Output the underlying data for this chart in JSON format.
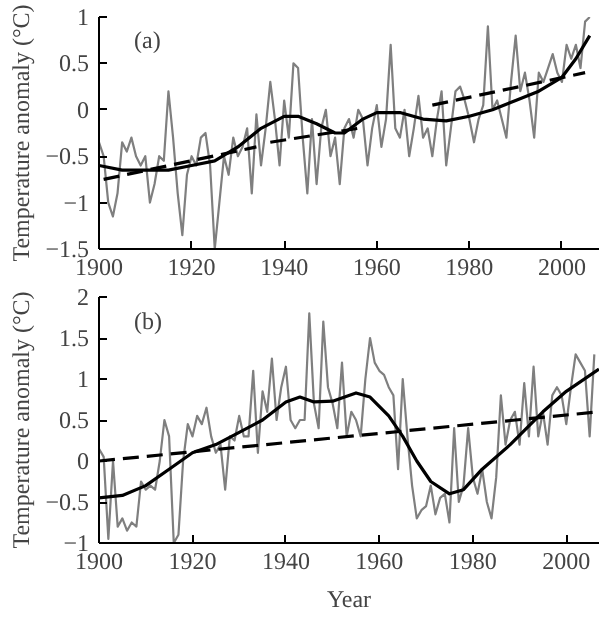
{
  "chart_data": [
    {
      "type": "line",
      "ylabel": "Temperature anomaly (°C)",
      "annotations": [
        "(a)"
      ],
      "xlim": [
        1900,
        2008
      ],
      "ylim": [
        -1.5,
        1
      ],
      "xticks": [
        1900,
        1920,
        1940,
        1960,
        1980,
        2000
      ],
      "yticks": [
        -1.5,
        -1,
        -0.5,
        0,
        0.5,
        1
      ],
      "grid": false,
      "series": [
        {
          "color": "#7f7f7f",
          "line_style": "solid",
          "x": [
            1900,
            1901,
            1902,
            1903,
            1904,
            1905,
            1906,
            1907,
            1908,
            1909,
            1910,
            1911,
            1912,
            1913,
            1914,
            1915,
            1916,
            1917,
            1918,
            1919,
            1920,
            1921,
            1922,
            1923,
            1924,
            1925,
            1926,
            1927,
            1928,
            1929,
            1930,
            1931,
            1932,
            1933,
            1934,
            1935,
            1936,
            1937,
            1938,
            1939,
            1940,
            1941,
            1942,
            1943,
            1944,
            1945,
            1946,
            1947,
            1948,
            1949,
            1950,
            1951,
            1952,
            1953,
            1954,
            1955,
            1956,
            1957,
            1958,
            1959,
            1960,
            1961,
            1962,
            1963,
            1964,
            1965,
            1966,
            1967,
            1968,
            1969,
            1970,
            1971,
            1972,
            1973,
            1974,
            1975,
            1976,
            1977,
            1978,
            1979,
            1980,
            1981,
            1982,
            1983,
            1984,
            1985,
            1986,
            1987,
            1988,
            1989,
            1990,
            1991,
            1992,
            1993,
            1994,
            1995,
            1996,
            1997,
            1998,
            1999,
            2000,
            2001,
            2002,
            2003,
            2004,
            2005,
            2006
          ],
          "values": [
            -0.35,
            -0.5,
            -1.0,
            -1.15,
            -0.9,
            -0.35,
            -0.45,
            -0.3,
            -0.5,
            -0.6,
            -0.5,
            -1.0,
            -0.8,
            -0.5,
            -0.55,
            0.2,
            -0.3,
            -0.9,
            -1.35,
            -0.7,
            -0.5,
            -0.6,
            -0.3,
            -0.25,
            -0.6,
            -1.5,
            -1.0,
            -0.5,
            -0.7,
            -0.3,
            -0.5,
            -0.4,
            -0.2,
            -0.9,
            -0.05,
            -0.6,
            -0.2,
            0.3,
            -0.1,
            -0.6,
            0.1,
            -0.3,
            0.5,
            0.45,
            -0.3,
            -0.9,
            -0.1,
            -0.8,
            -0.2,
            0.0,
            -0.5,
            -0.3,
            -0.8,
            -0.2,
            -0.1,
            -0.3,
            0.0,
            -0.1,
            -0.6,
            -0.2,
            0.05,
            -0.4,
            -0.1,
            0.7,
            -0.2,
            -0.3,
            0.0,
            -0.5,
            -0.2,
            0.15,
            -0.3,
            -0.2,
            -0.5,
            -0.1,
            0.2,
            -0.6,
            -0.2,
            0.2,
            0.25,
            0.1,
            -0.1,
            -0.35,
            -0.1,
            0.05,
            0.9,
            0.0,
            0.1,
            -0.1,
            -0.3,
            0.3,
            0.8,
            0.2,
            0.4,
            0.1,
            -0.3,
            0.4,
            0.3,
            0.45,
            0.6,
            0.4,
            0.3,
            0.7,
            0.55,
            0.7,
            0.45,
            0.95,
            1.0
          ]
        },
        {
          "color": "#000000",
          "line_style": "solid",
          "x": [
            1900,
            1905,
            1910,
            1915,
            1920,
            1925,
            1930,
            1935,
            1940,
            1943,
            1947,
            1951,
            1953,
            1957,
            1960,
            1965,
            1970,
            1975,
            1980,
            1985,
            1990,
            1995,
            2000,
            2003,
            2006
          ],
          "values": [
            -0.6,
            -0.65,
            -0.65,
            -0.65,
            -0.6,
            -0.55,
            -0.4,
            -0.2,
            -0.07,
            -0.07,
            -0.15,
            -0.25,
            -0.25,
            -0.1,
            -0.03,
            -0.03,
            -0.1,
            -0.12,
            -0.07,
            0.0,
            0.1,
            0.2,
            0.35,
            0.55,
            0.8
          ]
        },
        {
          "color": "#000000",
          "line_style": "dashed",
          "x": [
            1901,
            1934,
            1935,
            1937,
            1956,
            1960,
            1972,
            2005
          ],
          "values": [
            -0.75,
            -0.4,
            null,
            -0.35,
            -0.2,
            null,
            0.05,
            0.4
          ]
        }
      ]
    },
    {
      "type": "line",
      "xlabel": "Year",
      "ylabel": "Temperature anomaly (°C)",
      "annotations": [
        "(b)"
      ],
      "xlim": [
        1900,
        2007
      ],
      "ylim": [
        -1,
        2
      ],
      "xticks": [
        1900,
        1920,
        1940,
        1960,
        1980,
        2000
      ],
      "yticks": [
        -1,
        -0.5,
        0,
        0.5,
        1,
        1.5,
        2
      ],
      "grid": false,
      "series": [
        {
          "color": "#7f7f7f",
          "line_style": "solid",
          "x": [
            1900,
            1901,
            1902,
            1903,
            1904,
            1905,
            1906,
            1907,
            1908,
            1909,
            1910,
            1911,
            1912,
            1913,
            1914,
            1915,
            1916,
            1917,
            1918,
            1919,
            1920,
            1921,
            1922,
            1923,
            1924,
            1925,
            1926,
            1927,
            1928,
            1929,
            1930,
            1931,
            1932,
            1933,
            1934,
            1935,
            1936,
            1937,
            1938,
            1939,
            1940,
            1941,
            1942,
            1943,
            1944,
            1945,
            1946,
            1947,
            1948,
            1949,
            1950,
            1951,
            1952,
            1953,
            1954,
            1955,
            1956,
            1957,
            1958,
            1959,
            1960,
            1961,
            1962,
            1963,
            1964,
            1965,
            1966,
            1967,
            1968,
            1969,
            1970,
            1971,
            1972,
            1973,
            1974,
            1975,
            1976,
            1977,
            1978,
            1979,
            1980,
            1981,
            1982,
            1983,
            1984,
            1985,
            1986,
            1987,
            1988,
            1989,
            1990,
            1991,
            1992,
            1993,
            1994,
            1995,
            1996,
            1997,
            1998,
            1999,
            2000,
            2001,
            2002,
            2003,
            2004,
            2005,
            2006
          ],
          "values": [
            0.15,
            0.05,
            -0.95,
            0.0,
            -0.8,
            -0.7,
            -0.85,
            -0.75,
            -0.8,
            -0.25,
            -0.35,
            -0.3,
            -0.35,
            0.0,
            0.5,
            0.3,
            -1.0,
            -0.9,
            0.0,
            0.45,
            0.3,
            0.55,
            0.45,
            0.65,
            0.3,
            0.1,
            0.2,
            -0.35,
            0.3,
            0.25,
            0.55,
            0.3,
            0.3,
            1.1,
            0.1,
            0.85,
            0.6,
            1.25,
            0.5,
            0.9,
            1.15,
            0.5,
            0.4,
            0.5,
            0.5,
            1.8,
            0.7,
            0.4,
            1.7,
            0.9,
            0.7,
            0.4,
            1.2,
            0.3,
            0.6,
            0.5,
            0.3,
            1.0,
            1.5,
            1.2,
            1.1,
            1.05,
            0.9,
            0.8,
            -0.1,
            1.0,
            0.3,
            -0.3,
            -0.7,
            -0.6,
            -0.55,
            -0.3,
            -0.65,
            -0.45,
            -0.4,
            -0.75,
            0.4,
            -0.5,
            -0.3,
            0.4,
            -0.2,
            -0.4,
            -0.1,
            -0.5,
            -0.7,
            -0.2,
            0.8,
            0.2,
            0.5,
            0.6,
            0.2,
            0.95,
            0.3,
            1.15,
            0.3,
            0.6,
            0.2,
            0.8,
            0.9,
            0.8,
            0.45,
            0.9,
            1.3,
            1.2,
            1.1,
            0.3,
            1.3
          ]
        },
        {
          "color": "#000000",
          "line_style": "solid",
          "x": [
            1900,
            1905,
            1910,
            1915,
            1920,
            1925,
            1930,
            1935,
            1940,
            1943,
            1946,
            1950,
            1955,
            1958,
            1962,
            1965,
            1968,
            1971,
            1975,
            1978,
            1982,
            1988,
            1995,
            2000,
            2007
          ],
          "values": [
            -0.45,
            -0.42,
            -0.3,
            -0.1,
            0.1,
            0.2,
            0.35,
            0.5,
            0.72,
            0.78,
            0.72,
            0.73,
            0.83,
            0.78,
            0.55,
            0.3,
            0.0,
            -0.25,
            -0.4,
            -0.35,
            -0.1,
            0.2,
            0.6,
            0.85,
            1.12
          ]
        },
        {
          "color": "#000000",
          "line_style": "dashed",
          "x": [
            1900,
            2007
          ],
          "values": [
            0.0,
            0.6
          ]
        }
      ]
    }
  ]
}
